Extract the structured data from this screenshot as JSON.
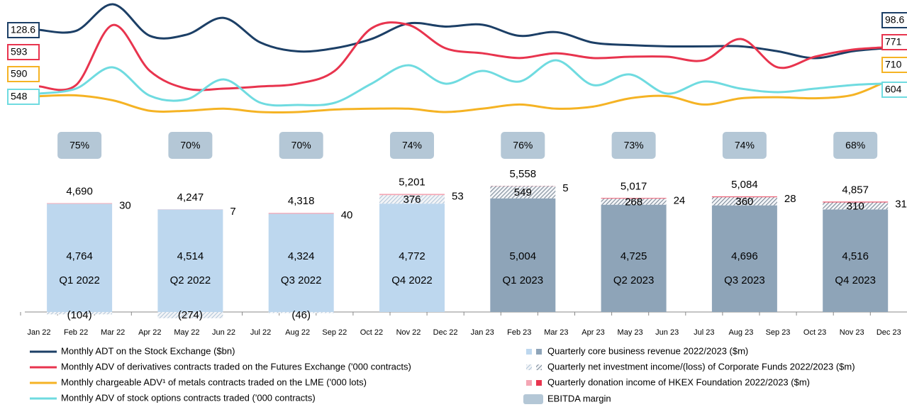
{
  "chart_data": [
    {
      "type": "line",
      "categories": [
        "Jan 22",
        "Feb 22",
        "Mar 22",
        "Apr 22",
        "May 22",
        "Jun 22",
        "Jul 22",
        "Aug 22",
        "Sep 22",
        "Oct 22",
        "Nov 22",
        "Dec 22",
        "Jan 23",
        "Feb 23",
        "Mar 23",
        "Apr 23",
        "May 23",
        "Jun 23",
        "Jul 23",
        "Aug 23",
        "Sep 23",
        "Oct 23",
        "Nov 23",
        "Dec 23"
      ],
      "series": [
        {
          "name": "Monthly ADT on the Stock Exchange ($bn)",
          "color": "#1c3f66",
          "values": [
            128.6,
            127,
            170,
            119,
            121,
            148,
            108,
            94,
            99,
            114,
            139,
            134,
            137,
            119,
            125,
            108,
            104,
            102,
            102,
            102,
            94,
            83,
            94,
            98.6
          ]
        },
        {
          "name": "Monthly ADV of derivatives contracts traded on the Futures Exchange ('000 contracts)",
          "color": "#e8344e",
          "values": [
            593,
            599,
            874,
            664,
            583,
            583,
            593,
            606,
            664,
            859,
            875,
            768,
            745,
            723,
            745,
            723,
            729,
            729,
            713,
            810,
            680,
            729,
            761,
            771
          ]
        },
        {
          "name": "Monthly chargeable ADV¹ of metals contracts traded on the LME ('000 lots)",
          "color": "#f5b324",
          "values": [
            590,
            598,
            550,
            450,
            450,
            470,
            438,
            438,
            462,
            470,
            470,
            438,
            470,
            510,
            470,
            490,
            570,
            590,
            510,
            570,
            580,
            570,
            600,
            710
          ]
        },
        {
          "name": "Monthly ADV of stock options contracts traded ('000 contracts)",
          "color": "#6fdbe0",
          "values": [
            548,
            576,
            696,
            536,
            516,
            628,
            496,
            484,
            496,
            604,
            708,
            604,
            676,
            616,
            736,
            596,
            656,
            548,
            616,
            576,
            556,
            576,
            596,
            604
          ]
        }
      ]
    },
    {
      "type": "bar",
      "stacked": true,
      "categories": [
        "Q1 2022",
        "Q2 2022",
        "Q3 2022",
        "Q4 2022",
        "Q1 2023",
        "Q2 2023",
        "Q3 2023",
        "Q4 2023"
      ],
      "series": [
        {
          "name": "Quarterly core business revenue 2022/2023 ($m)",
          "colors": [
            "#bdd7ee",
            "#bdd7ee",
            "#bdd7ee",
            "#bdd7ee",
            "#8ea4b8",
            "#8ea4b8",
            "#8ea4b8",
            "#8ea4b8"
          ],
          "values": [
            4764,
            4514,
            4324,
            4772,
            5004,
            4725,
            4696,
            4516
          ]
        },
        {
          "name": "Quarterly net investment income/(loss) of Corporate Funds 2022/2023 ($m)",
          "colors": [
            "#9fb8d0",
            "#9fb8d0",
            "#9fb8d0",
            "#9fb8d0",
            "#56687a",
            "#56687a",
            "#56687a",
            "#56687a"
          ],
          "values": [
            -104,
            -274,
            -46,
            376,
            549,
            268,
            360,
            310
          ],
          "value_labels": [
            "(104)",
            "(274)",
            "(46)",
            "376",
            "549",
            "268",
            "360",
            "310"
          ]
        },
        {
          "name": "Quarterly donation income of HKEX Foundation 2022/2023 ($m)",
          "colors": [
            "#f4a6b4",
            "#f4a6b4",
            "#f4a6b4",
            "#f4a6b4",
            "#e8344e",
            "#e8344e",
            "#e8344e",
            "#e8344e"
          ],
          "values": [
            30,
            7,
            40,
            53,
            5,
            24,
            28,
            31
          ]
        }
      ],
      "totals": [
        4690,
        4247,
        4318,
        5201,
        5558,
        5017,
        5084,
        4857
      ],
      "totals_labels": [
        "4,690",
        "4,247",
        "4,318",
        "5,201",
        "5,558",
        "5,017",
        "5,084",
        "4,857"
      ],
      "core_labels": [
        "4,764",
        "4,514",
        "4,324",
        "4,772",
        "5,004",
        "4,725",
        "4,696",
        "4,516"
      ],
      "ebitda": {
        "name": "EBITDA margin",
        "color": "#b4c7d6",
        "values": [
          75,
          70,
          70,
          74,
          76,
          73,
          74,
          68
        ],
        "value_labels": [
          "75%",
          "70%",
          "70%",
          "74%",
          "76%",
          "73%",
          "74%",
          "68%"
        ]
      }
    }
  ]
}
